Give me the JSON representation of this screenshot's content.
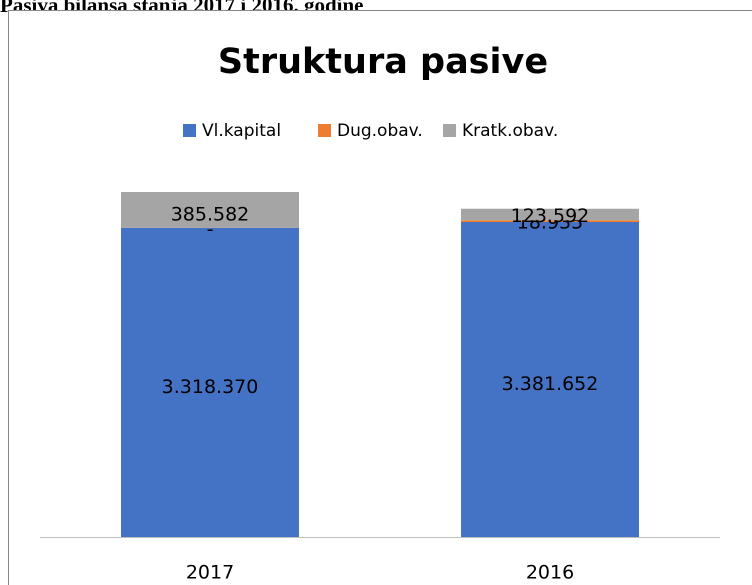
{
  "heading": "Pasiva bilansa stanja 2017 i 2016. godine",
  "chart_data": {
    "type": "stacked_bar",
    "title": "Struktura pasive",
    "categories": [
      "2017",
      "2016"
    ],
    "series": [
      {
        "name": "Vl.kapital",
        "color": "#4472c4",
        "values": [
          3318370,
          3381652
        ],
        "value_labels": [
          "3.318.370",
          "3.381.652"
        ]
      },
      {
        "name": "Dug.obav.",
        "color": "#ed7d31",
        "values": [
          0,
          18935
        ],
        "value_labels": [
          "-",
          "18.935"
        ]
      },
      {
        "name": "Kratk.obav.",
        "color": "#a5a5a5",
        "values": [
          385582,
          123592
        ],
        "value_labels": [
          "385.582",
          "123.592"
        ]
      }
    ],
    "legend": "top"
  }
}
